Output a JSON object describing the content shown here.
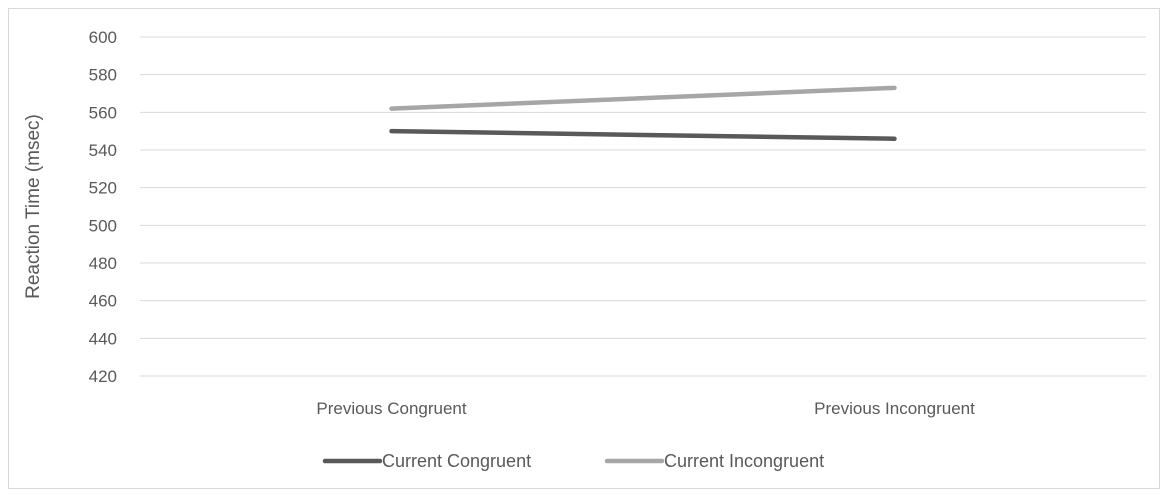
{
  "chart_data": {
    "type": "line",
    "title": "",
    "xlabel": "",
    "ylabel": "Reaction Time (msec)",
    "categories": [
      "Previous Congruent",
      "Previous Incongruent"
    ],
    "ylim": [
      420,
      600
    ],
    "yticks": [
      420,
      440,
      460,
      480,
      500,
      520,
      540,
      560,
      580,
      600
    ],
    "grid": true,
    "legend": "bottom",
    "series": [
      {
        "name": "Current Congruent",
        "values": [
          550,
          546
        ],
        "color": "#595959"
      },
      {
        "name": "Current Incongruent",
        "values": [
          562,
          573
        ],
        "color": "#a6a6a6"
      }
    ]
  }
}
